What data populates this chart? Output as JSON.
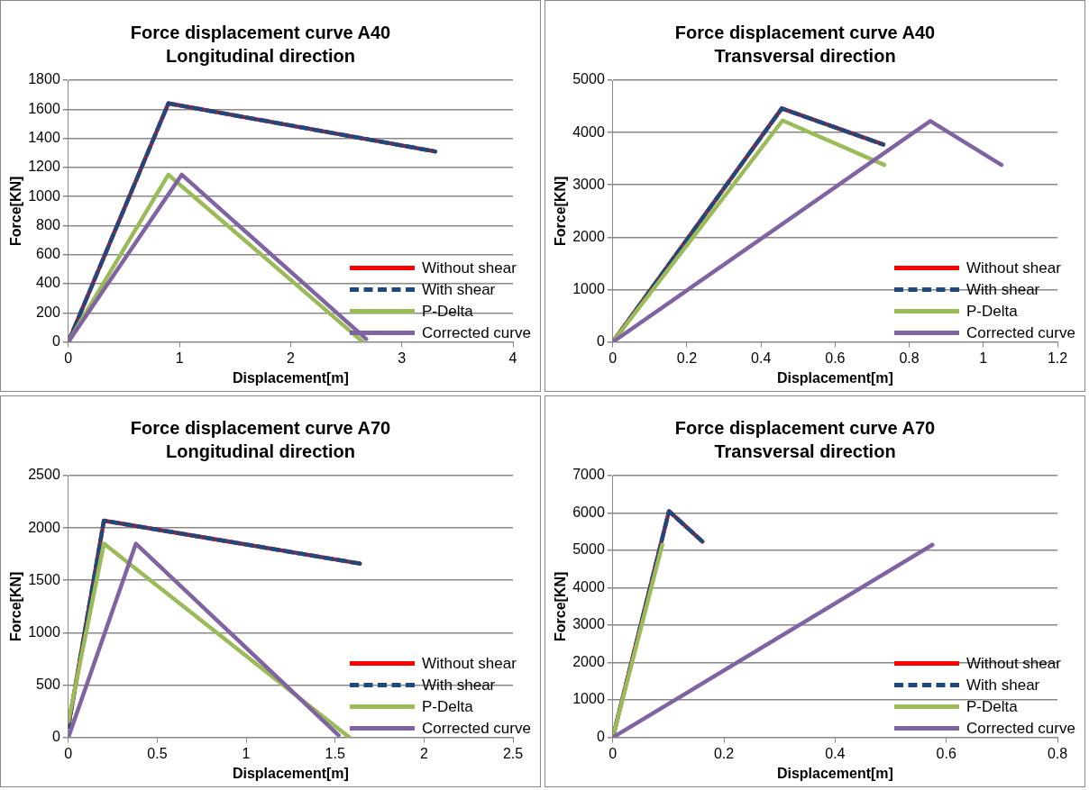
{
  "chart_data": [
    {
      "type": "line",
      "title": "Force displacement curve A40",
      "subtitle": "Longitudinal direction",
      "xlabel": "Displacement[m]",
      "ylabel": "Force[KN]",
      "xlim": [
        0,
        4
      ],
      "xticks": [
        0,
        1,
        2,
        3,
        4
      ],
      "ylim": [
        0,
        1800
      ],
      "yticks": [
        0,
        200,
        400,
        600,
        800,
        1000,
        1200,
        1400,
        1600,
        1800
      ],
      "grid": "y",
      "legend": "bottom right",
      "marker": "none",
      "series": [
        {
          "name": "Without shear",
          "color": "#ff0000",
          "line_style": "solid",
          "x": [
            0,
            0.9,
            3.3
          ],
          "values": [
            0,
            1640,
            1310
          ]
        },
        {
          "name": "With shear",
          "color": "#1f497d",
          "line_style": "dashed",
          "x": [
            0,
            0.9,
            3.3
          ],
          "values": [
            0,
            1640,
            1310
          ]
        },
        {
          "name": "P-Delta",
          "color": "#9bbb59",
          "line_style": "solid",
          "x": [
            0,
            0.9,
            2.65
          ],
          "values": [
            0,
            1150,
            0
          ]
        },
        {
          "name": "Corrected curve",
          "color": "#8064a2",
          "line_style": "solid",
          "x": [
            0,
            1.02,
            2.68
          ],
          "values": [
            0,
            1150,
            20
          ]
        }
      ]
    },
    {
      "type": "line",
      "title": "Force displacement curve A40",
      "subtitle": "Transversal direction",
      "xlabel": "Displacement[m]",
      "ylabel": "Force[KN]",
      "xlim": [
        0,
        1.2
      ],
      "xticks": [
        0,
        0.2,
        0.4,
        0.6,
        0.8,
        1,
        1.2
      ],
      "ylim": [
        0,
        5000
      ],
      "yticks": [
        0,
        1000,
        2000,
        3000,
        4000,
        5000
      ],
      "grid": "y",
      "legend": "bottom right",
      "marker": "none",
      "series": [
        {
          "name": "Without shear",
          "color": "#ff0000",
          "line_style": "solid",
          "x": [
            0,
            0.456,
            0.73
          ],
          "values": [
            0,
            4460,
            3770
          ]
        },
        {
          "name": "With shear",
          "color": "#1f497d",
          "line_style": "dashed",
          "x": [
            0,
            0.456,
            0.73
          ],
          "values": [
            0,
            4460,
            3770
          ]
        },
        {
          "name": "P-Delta",
          "color": "#9bbb59",
          "line_style": "solid",
          "x": [
            0,
            0.458,
            0.733
          ],
          "values": [
            0,
            4230,
            3380
          ]
        },
        {
          "name": "Corrected curve",
          "color": "#8064a2",
          "line_style": "solid",
          "x": [
            0,
            0.857,
            1.049
          ],
          "values": [
            0,
            4220,
            3380
          ]
        }
      ]
    },
    {
      "type": "line",
      "title": "Force displacement curve A70",
      "subtitle": "Longitudinal direction",
      "xlabel": "Displacement[m]",
      "ylabel": "Force[KN]",
      "xlim": [
        0,
        2.5
      ],
      "xticks": [
        0,
        0.5,
        1,
        1.5,
        2,
        2.5
      ],
      "ylim": [
        0,
        2500
      ],
      "yticks": [
        0,
        500,
        1000,
        1500,
        2000,
        2500
      ],
      "grid": "y",
      "legend": "bottom right",
      "marker": "none",
      "series": [
        {
          "name": "Without shear",
          "color": "#ff0000",
          "line_style": "solid",
          "x": [
            0,
            0.2,
            1.64
          ],
          "values": [
            100,
            2070,
            1660
          ]
        },
        {
          "name": "With shear",
          "color": "#1f497d",
          "line_style": "dashed",
          "x": [
            0,
            0.2,
            1.64
          ],
          "values": [
            100,
            2070,
            1660
          ]
        },
        {
          "name": "P-Delta",
          "color": "#9bbb59",
          "line_style": "solid",
          "x": [
            0,
            0.2,
            1.58
          ],
          "values": [
            150,
            1850,
            0
          ]
        },
        {
          "name": "Corrected curve",
          "color": "#8064a2",
          "line_style": "solid",
          "x": [
            0,
            0.38,
            1.52
          ],
          "values": [
            0,
            1850,
            20
          ]
        }
      ]
    },
    {
      "type": "line",
      "title": "Force displacement curve A70",
      "subtitle": "Transversal direction",
      "xlabel": "Displacement[m]",
      "ylabel": "Force[KN]",
      "xlim": [
        0,
        0.8
      ],
      "xticks": [
        0,
        0.2,
        0.4,
        0.6,
        0.8
      ],
      "ylim": [
        0,
        7000
      ],
      "yticks": [
        0,
        1000,
        2000,
        3000,
        4000,
        5000,
        6000,
        7000
      ],
      "grid": "y",
      "legend": "bottom right",
      "marker": "none",
      "series": [
        {
          "name": "Without shear",
          "color": "#ff0000",
          "line_style": "solid",
          "x": [
            0,
            0.101,
            0.161
          ],
          "values": [
            0,
            6050,
            5240
          ]
        },
        {
          "name": "With shear",
          "color": "#1f497d",
          "line_style": "dashed",
          "x": [
            0,
            0.101,
            0.161
          ],
          "values": [
            0,
            6050,
            5240
          ]
        },
        {
          "name": "P-Delta",
          "color": "#9bbb59",
          "line_style": "solid",
          "x": [
            0,
            0.089
          ],
          "values": [
            0,
            5150
          ]
        },
        {
          "name": "Corrected curve",
          "color": "#8064a2",
          "line_style": "solid",
          "x": [
            0,
            0.575
          ],
          "values": [
            0,
            5150
          ]
        }
      ]
    }
  ]
}
